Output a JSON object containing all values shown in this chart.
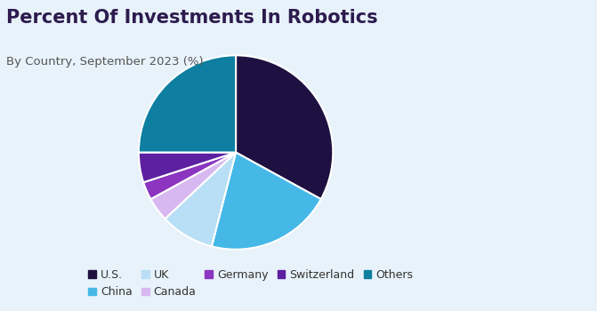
{
  "title": "Percent Of Investments In Robotics",
  "subtitle": "By Country, September 2023 (%)",
  "labels": [
    "U.S.",
    "China",
    "UK",
    "Canada",
    "Germany",
    "Switzerland",
    "Others"
  ],
  "values": [
    33,
    21,
    9,
    4,
    3,
    5,
    25
  ],
  "colors": [
    "#1e1040",
    "#45b8e8",
    "#b8dff5",
    "#d8b8f0",
    "#8b35c0",
    "#5c20a0",
    "#0e7fa0"
  ],
  "background_color": "#e8f2fa",
  "startangle": 90,
  "wedge_edge_color": "white",
  "wedge_linewidth": 1.5,
  "title_color": "#2d1b4e",
  "subtitle_color": "#555555",
  "title_fontsize": 15,
  "subtitle_fontsize": 9.5,
  "legend_fontsize": 9
}
